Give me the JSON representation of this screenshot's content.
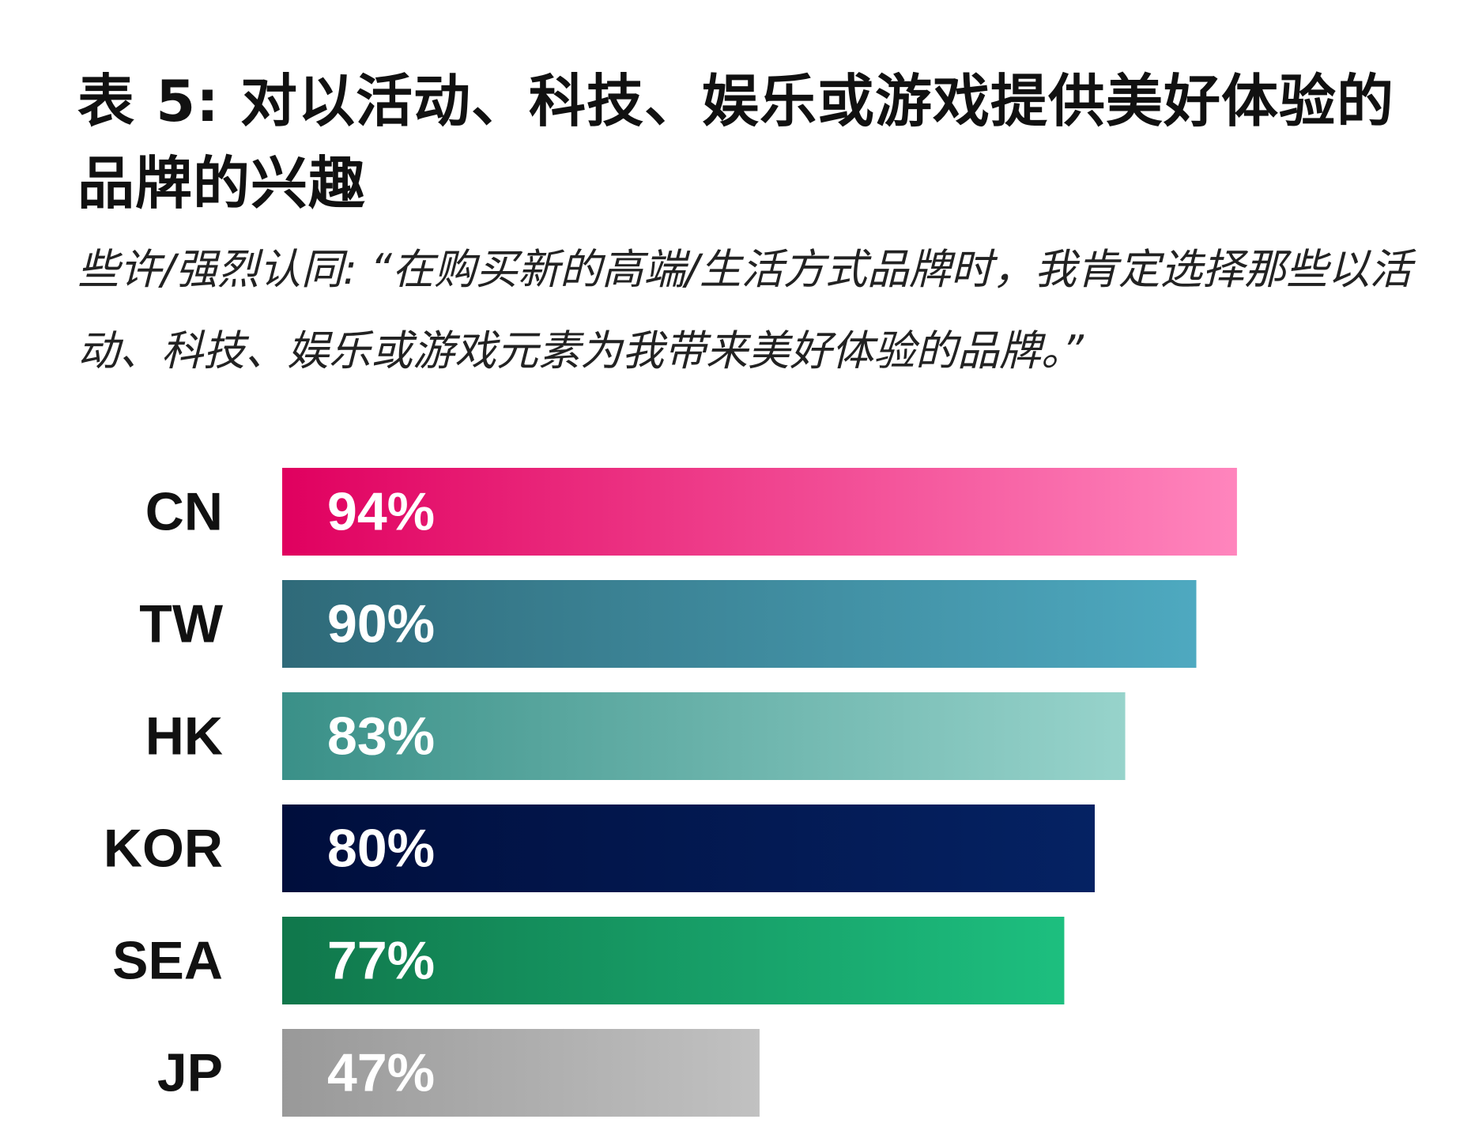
{
  "chart_data": {
    "type": "bar",
    "orientation": "horizontal",
    "title": "表 5: 对以活动、科技、娱乐或游戏提供美好体验的品牌的兴趣",
    "subtitle": "些许/强烈认同: “在购买新的高端/生活方式品牌时，我肯定选择那些以活动、科技、娱乐或游戏元素为我带来美好体验的品牌。”",
    "categories": [
      "CN",
      "TW",
      "HK",
      "KOR",
      "SEA",
      "JP"
    ],
    "values": [
      94,
      90,
      83,
      80,
      77,
      47
    ],
    "value_labels": [
      "94%",
      "90%",
      "83%",
      "80%",
      "77%",
      "47%"
    ],
    "unit": "%",
    "grid": false,
    "legend": "none",
    "bar_colors": [
      {
        "start": "#e0005f",
        "end": "#ff85bd"
      },
      {
        "start": "#2f6a79",
        "end": "#4ea9c0"
      },
      {
        "start": "#3a9088",
        "end": "#97d3cb"
      },
      {
        "start": "#000e3c",
        "end": "#052263"
      },
      {
        "start": "#10774b",
        "end": "#1dbf7f"
      },
      {
        "start": "#999999",
        "end": "#c1c1c1"
      }
    ]
  }
}
